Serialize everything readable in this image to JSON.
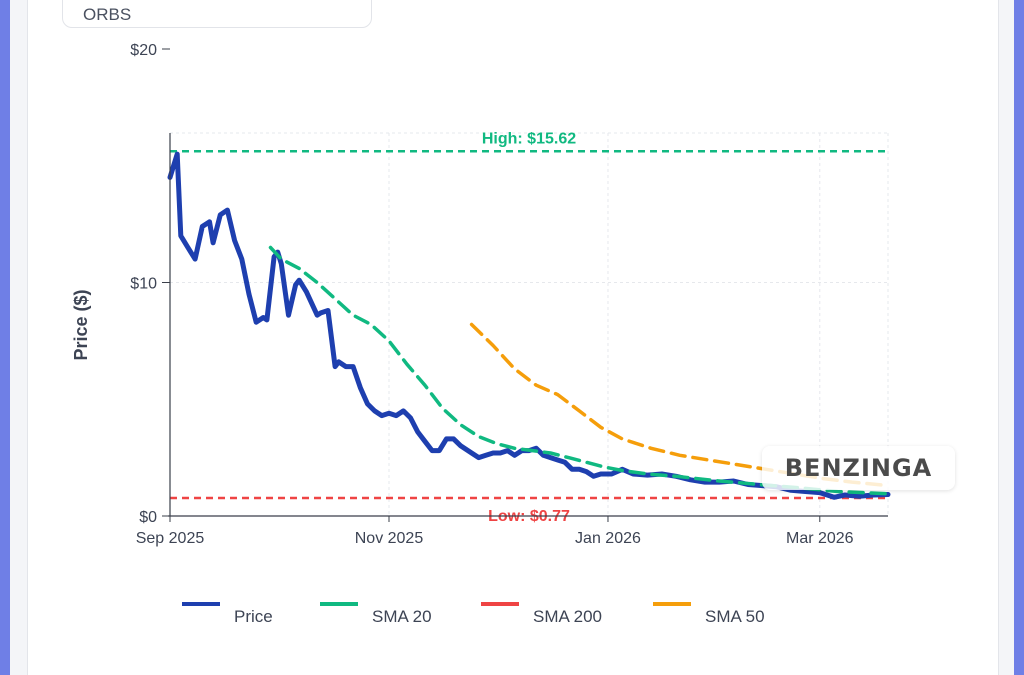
{
  "ticker": "ORBS",
  "brand": "BENZINGA",
  "chart_data": {
    "type": "line",
    "ylabel": "Price ($)",
    "xlabel": "",
    "ylim": [
      0,
      20
    ],
    "y_ticks": [
      {
        "value": 0,
        "label": "$0"
      },
      {
        "value": 10,
        "label": "$10"
      },
      {
        "value": 20,
        "label": "$20"
      }
    ],
    "x_ticks": [
      {
        "date": "2025-09-01",
        "label": "Sep 2025"
      },
      {
        "date": "2025-11-01",
        "label": "Nov 2025"
      },
      {
        "date": "2026-01-01",
        "label": "Jan 2026"
      },
      {
        "date": "2026-03-01",
        "label": "Mar 2026"
      }
    ],
    "xlim": [
      "2025-09-01",
      "2026-03-20"
    ],
    "grid": true,
    "legend_position": "bottom",
    "reference_lines": [
      {
        "label": "High: $15.62",
        "value": 15.62,
        "color": "#10b981"
      },
      {
        "label": "Low: $0.77",
        "value": 0.77,
        "color": "#ef4444"
      }
    ],
    "series": [
      {
        "name": "Price",
        "color": "#1e3faf",
        "dash": "solid",
        "points": [
          [
            "2025-09-01",
            14.5
          ],
          [
            "2025-09-03",
            15.5
          ],
          [
            "2025-09-04",
            12.0
          ],
          [
            "2025-09-06",
            11.5
          ],
          [
            "2025-09-08",
            11.0
          ],
          [
            "2025-09-10",
            12.4
          ],
          [
            "2025-09-12",
            12.6
          ],
          [
            "2025-09-13",
            11.7
          ],
          [
            "2025-09-15",
            12.9
          ],
          [
            "2025-09-17",
            13.1
          ],
          [
            "2025-09-19",
            11.8
          ],
          [
            "2025-09-21",
            11.0
          ],
          [
            "2025-09-23",
            9.5
          ],
          [
            "2025-09-25",
            8.3
          ],
          [
            "2025-09-27",
            8.5
          ],
          [
            "2025-09-28",
            8.4
          ],
          [
            "2025-09-30",
            11.1
          ],
          [
            "2025-10-01",
            11.3
          ],
          [
            "2025-10-02",
            10.8
          ],
          [
            "2025-10-04",
            8.6
          ],
          [
            "2025-10-06",
            9.9
          ],
          [
            "2025-10-07",
            10.1
          ],
          [
            "2025-10-09",
            9.6
          ],
          [
            "2025-10-12",
            8.6
          ],
          [
            "2025-10-13",
            8.7
          ],
          [
            "2025-10-15",
            8.8
          ],
          [
            "2025-10-17",
            6.4
          ],
          [
            "2025-10-18",
            6.6
          ],
          [
            "2025-10-20",
            6.4
          ],
          [
            "2025-10-22",
            6.4
          ],
          [
            "2025-10-24",
            5.5
          ],
          [
            "2025-10-26",
            4.8
          ],
          [
            "2025-10-28",
            4.5
          ],
          [
            "2025-10-30",
            4.3
          ],
          [
            "2025-11-01",
            4.4
          ],
          [
            "2025-11-03",
            4.3
          ],
          [
            "2025-11-05",
            4.5
          ],
          [
            "2025-11-07",
            4.2
          ],
          [
            "2025-11-09",
            3.6
          ],
          [
            "2025-11-11",
            3.2
          ],
          [
            "2025-11-13",
            2.8
          ],
          [
            "2025-11-15",
            2.8
          ],
          [
            "2025-11-17",
            3.3
          ],
          [
            "2025-11-19",
            3.3
          ],
          [
            "2025-11-21",
            3.0
          ],
          [
            "2025-11-24",
            2.7
          ],
          [
            "2025-11-26",
            2.5
          ],
          [
            "2025-11-28",
            2.6
          ],
          [
            "2025-11-30",
            2.7
          ],
          [
            "2025-12-02",
            2.7
          ],
          [
            "2025-12-04",
            2.8
          ],
          [
            "2025-12-06",
            2.6
          ],
          [
            "2025-12-08",
            2.8
          ],
          [
            "2025-12-10",
            2.8
          ],
          [
            "2025-12-12",
            2.9
          ],
          [
            "2025-12-14",
            2.6
          ],
          [
            "2025-12-16",
            2.5
          ],
          [
            "2025-12-18",
            2.4
          ],
          [
            "2025-12-20",
            2.3
          ],
          [
            "2025-12-22",
            2.0
          ],
          [
            "2025-12-24",
            2.0
          ],
          [
            "2025-12-26",
            1.9
          ],
          [
            "2025-12-28",
            1.7
          ],
          [
            "2025-12-30",
            1.8
          ],
          [
            "2026-01-02",
            1.8
          ],
          [
            "2026-01-05",
            2.0
          ],
          [
            "2026-01-08",
            1.8
          ],
          [
            "2026-01-12",
            1.75
          ],
          [
            "2026-01-16",
            1.8
          ],
          [
            "2026-01-20",
            1.7
          ],
          [
            "2026-01-24",
            1.55
          ],
          [
            "2026-01-28",
            1.45
          ],
          [
            "2026-02-01",
            1.45
          ],
          [
            "2026-02-05",
            1.5
          ],
          [
            "2026-02-09",
            1.35
          ],
          [
            "2026-02-13",
            1.3
          ],
          [
            "2026-02-17",
            1.25
          ],
          [
            "2026-02-21",
            1.1
          ],
          [
            "2026-02-25",
            1.05
          ],
          [
            "2026-03-01",
            1.0
          ],
          [
            "2026-03-05",
            0.8
          ],
          [
            "2026-03-08",
            0.9
          ],
          [
            "2026-03-12",
            0.85
          ],
          [
            "2026-03-16",
            0.9
          ],
          [
            "2026-03-20",
            0.92
          ]
        ]
      },
      {
        "name": "SMA 20",
        "color": "#10b981",
        "dash": "dashed",
        "points": [
          [
            "2025-09-29",
            11.5
          ],
          [
            "2025-10-02",
            11.0
          ],
          [
            "2025-10-07",
            10.6
          ],
          [
            "2025-10-12",
            10.0
          ],
          [
            "2025-10-17",
            9.3
          ],
          [
            "2025-10-22",
            8.6
          ],
          [
            "2025-10-27",
            8.2
          ],
          [
            "2025-11-01",
            7.5
          ],
          [
            "2025-11-06",
            6.5
          ],
          [
            "2025-11-11",
            5.6
          ],
          [
            "2025-11-16",
            4.6
          ],
          [
            "2025-11-21",
            3.9
          ],
          [
            "2025-11-26",
            3.4
          ],
          [
            "2025-12-01",
            3.1
          ],
          [
            "2025-12-06",
            2.9
          ],
          [
            "2025-12-11",
            2.8
          ],
          [
            "2025-12-16",
            2.7
          ],
          [
            "2025-12-21",
            2.5
          ],
          [
            "2025-12-26",
            2.3
          ],
          [
            "2025-12-31",
            2.1
          ],
          [
            "2026-01-05",
            1.95
          ],
          [
            "2026-01-12",
            1.8
          ],
          [
            "2026-01-20",
            1.7
          ],
          [
            "2026-02-01",
            1.5
          ],
          [
            "2026-02-12",
            1.35
          ],
          [
            "2026-02-24",
            1.2
          ],
          [
            "2026-03-06",
            1.05
          ],
          [
            "2026-03-20",
            0.95
          ]
        ]
      },
      {
        "name": "SMA 200",
        "color": "#ef4444",
        "dash": "dashed",
        "points": []
      },
      {
        "name": "SMA 50",
        "color": "#f59e0b",
        "dash": "dashed",
        "points": [
          [
            "2025-11-24",
            8.2
          ],
          [
            "2025-11-30",
            7.3
          ],
          [
            "2025-12-06",
            6.3
          ],
          [
            "2025-12-12",
            5.6
          ],
          [
            "2025-12-18",
            5.2
          ],
          [
            "2025-12-24",
            4.5
          ],
          [
            "2025-12-30",
            3.8
          ],
          [
            "2026-01-05",
            3.3
          ],
          [
            "2026-01-13",
            2.9
          ],
          [
            "2026-01-21",
            2.6
          ],
          [
            "2026-01-29",
            2.4
          ],
          [
            "2026-02-06",
            2.2
          ],
          [
            "2026-02-14",
            2.0
          ],
          [
            "2026-02-22",
            1.8
          ],
          [
            "2026-03-02",
            1.6
          ],
          [
            "2026-03-10",
            1.45
          ],
          [
            "2026-03-20",
            1.3
          ]
        ]
      }
    ]
  }
}
